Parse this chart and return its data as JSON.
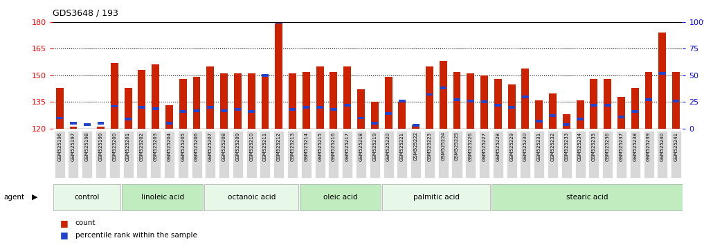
{
  "title": "GDS3648 / 193",
  "ylim_left": [
    120,
    180
  ],
  "ylim_right": [
    0,
    100
  ],
  "yticks_left": [
    120,
    135,
    150,
    165,
    180
  ],
  "yticks_right": [
    0,
    25,
    50,
    75,
    100
  ],
  "categories": [
    "GSM525196",
    "GSM525197",
    "GSM525198",
    "GSM525199",
    "GSM525200",
    "GSM525201",
    "GSM525202",
    "GSM525203",
    "GSM525204",
    "GSM525205",
    "GSM525206",
    "GSM525207",
    "GSM525208",
    "GSM525209",
    "GSM525210",
    "GSM525211",
    "GSM525212",
    "GSM525213",
    "GSM525214",
    "GSM525215",
    "GSM525216",
    "GSM525217",
    "GSM525218",
    "GSM525219",
    "GSM525220",
    "GSM525221",
    "GSM525222",
    "GSM525223",
    "GSM525224",
    "GSM525225",
    "GSM525226",
    "GSM525227",
    "GSM525228",
    "GSM525229",
    "GSM525230",
    "GSM525231",
    "GSM525232",
    "GSM525233",
    "GSM525234",
    "GSM525235",
    "GSM525236",
    "GSM525237",
    "GSM525238",
    "GSM525239",
    "GSM525240",
    "GSM525241"
  ],
  "red_values": [
    143,
    121,
    120,
    121,
    157,
    143,
    153,
    156,
    133,
    148,
    149,
    155,
    151,
    151,
    151,
    150,
    179,
    151,
    152,
    155,
    152,
    155,
    142,
    135,
    149,
    135,
    122,
    155,
    158,
    152,
    151,
    150,
    148,
    145,
    154,
    136,
    140,
    128,
    136,
    148,
    148,
    138,
    143,
    152,
    174,
    152
  ],
  "blue_pct": [
    10,
    5,
    4,
    5,
    21,
    9,
    20,
    19,
    5,
    16,
    17,
    20,
    17,
    18,
    16,
    50,
    100,
    18,
    20,
    20,
    18,
    22,
    10,
    5,
    14,
    26,
    3,
    32,
    38,
    27,
    26,
    25,
    22,
    20,
    30,
    7,
    12,
    4,
    9,
    22,
    22,
    11,
    16,
    27,
    52,
    26
  ],
  "group_labels": [
    "control",
    "linoleic acid",
    "octanoic acid",
    "oleic acid",
    "palmitic acid",
    "stearic acid"
  ],
  "group_spans_start": [
    0,
    5,
    11,
    18,
    24,
    32
  ],
  "group_spans_end": [
    5,
    11,
    18,
    24,
    32,
    46
  ],
  "bar_color_red": "#cc2200",
  "bar_color_blue": "#2244cc",
  "legend_count": "count",
  "legend_pct": "percentile rank within the sample",
  "group_colors": [
    "#e8f8e8",
    "#c0ecc0",
    "#e8f8e8",
    "#c0ecc0",
    "#e8f8e8",
    "#c0ecc0"
  ]
}
